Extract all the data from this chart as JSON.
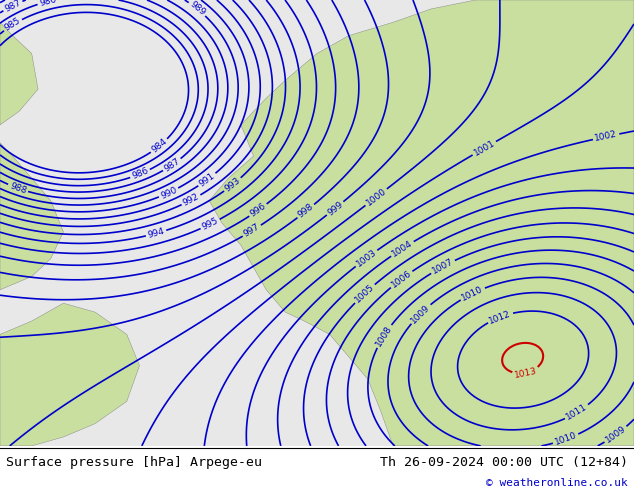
{
  "title_left": "Surface pressure [hPa] Arpege-eu",
  "title_right": "Th 26-09-2024 00:00 UTC (12+84)",
  "credit": "© weatheronline.co.uk",
  "bg_color": "#e8e8e8",
  "land_color": "#c8dfa0",
  "blue_line_color": "#0000cc",
  "red_line_color": "#cc0000",
  "footer_bg": "#ffffff",
  "footer_text_color": "#000000",
  "credit_color": "#0000cc",
  "figsize": [
    6.34,
    4.9
  ],
  "dpi": 100
}
